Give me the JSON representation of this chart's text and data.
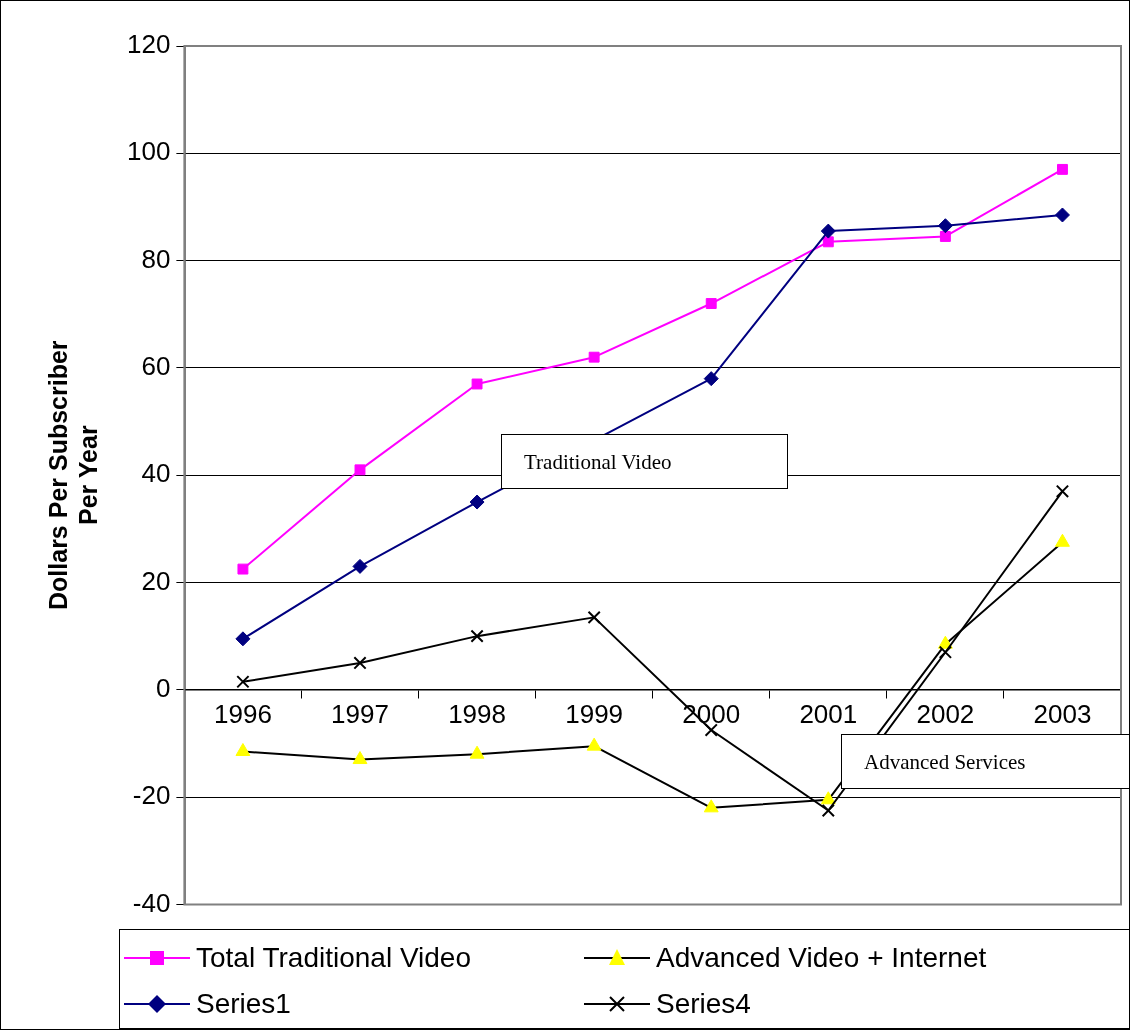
{
  "chart_data": {
    "type": "line",
    "ylabel": "Dollars Per Subscriber Per Year",
    "categories": [
      "1996",
      "1997",
      "1998",
      "1999",
      "2000",
      "2001",
      "2002",
      "2003"
    ],
    "series": [
      {
        "name": "Total Traditional Video",
        "color": "#ff00ff",
        "marker": "square",
        "values": [
          22.5,
          41,
          57,
          62,
          72,
          83.5,
          84.5,
          97
        ]
      },
      {
        "name": "Advanced Video + Internet",
        "color": "#000000",
        "colors": [
          "#ffff00",
          "#ffff00",
          "#ffff00",
          "#ffff00",
          "#ffff00",
          "#ffff00",
          "#ffff00",
          "#ffff00"
        ],
        "marker": "triangle",
        "values": [
          -11.5,
          -13,
          -12,
          -10.5,
          -22,
          -20.5,
          8.5,
          27.5
        ]
      },
      {
        "name": "Series1",
        "color": "#000080",
        "marker": "diamond",
        "values": [
          9.5,
          23,
          35,
          null,
          58,
          85.5,
          86.5,
          88.5
        ]
      },
      {
        "name": "Series4",
        "color": "#000000",
        "marker": "cross",
        "values": [
          1.5,
          5,
          10,
          13.5,
          -7.5,
          -22.5,
          7,
          37
        ]
      }
    ],
    "ylim": [
      -40,
      120
    ],
    "yticks": [
      -40,
      -20,
      0,
      20,
      40,
      60,
      80,
      100,
      120
    ],
    "grid": "y",
    "legend": "bottom",
    "annotations": [
      "Traditional Video",
      "Advanced Services"
    ]
  }
}
